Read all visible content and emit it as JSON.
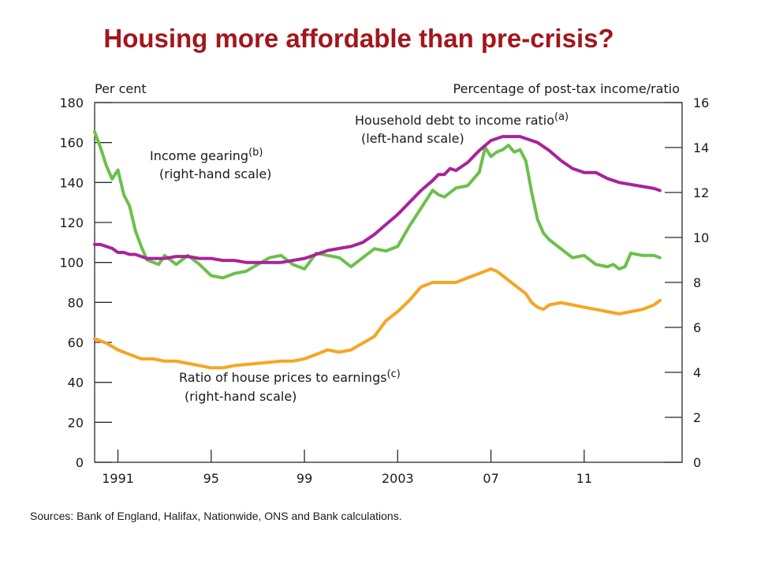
{
  "slide": {
    "title": "Housing more affordable than pre-crisis?",
    "sources": "Sources:  Bank of England, Halifax, Nationwide, ONS and Bank calculations."
  },
  "chart_data": {
    "type": "line",
    "left_axis_unit": "Per cent",
    "right_axis_unit": "Percentage of post-tax income/ratio",
    "left_ylim": [
      0,
      180
    ],
    "right_ylim": [
      0,
      16
    ],
    "left_ticks": [
      0,
      20,
      40,
      60,
      80,
      100,
      120,
      140,
      160,
      180
    ],
    "right_ticks": [
      0,
      2,
      4,
      6,
      8,
      10,
      12,
      14,
      16
    ],
    "x_ticks": [
      {
        "label": "1991",
        "x": 1991
      },
      {
        "label": "95",
        "x": 1995
      },
      {
        "label": "99",
        "x": 1999
      },
      {
        "label": "2003",
        "x": 2003
      },
      {
        "label": "07",
        "x": 2007
      },
      {
        "label": "11",
        "x": 2011
      }
    ],
    "xlim": [
      1990,
      2015.2
    ],
    "colors": {
      "debt": "#a8239a",
      "gearing": "#6cc04a",
      "house": "#f5a623"
    },
    "series": [
      {
        "key": "debt",
        "axis": "left",
        "label": "Household debt to income ratio",
        "label_sup": "(a)",
        "label_sub": "(left-hand scale)",
        "x": [
          1990.0,
          1990.25,
          1990.5,
          1990.75,
          1991.0,
          1991.25,
          1991.5,
          1991.75,
          1992.0,
          1992.25,
          1992.5,
          1992.75,
          1993.0,
          1993.5,
          1994.0,
          1994.5,
          1995.0,
          1995.5,
          1996.0,
          1996.5,
          1997.0,
          1997.5,
          1998.0,
          1998.5,
          1999.0,
          1999.25,
          1999.5,
          1999.75,
          2000.0,
          2000.5,
          2001.0,
          2001.5,
          2002.0,
          2002.5,
          2003.0,
          2003.5,
          2004.0,
          2004.5,
          2004.75,
          2005.0,
          2005.25,
          2005.5,
          2006.0,
          2006.5,
          2007.0,
          2007.5,
          2008.0,
          2008.25,
          2008.5,
          2009.0,
          2009.5,
          2010.0,
          2010.5,
          2011.0,
          2011.5,
          2012.0,
          2012.5,
          2013.0,
          2013.5,
          2014.0,
          2014.25
        ],
        "y": [
          109,
          109,
          108,
          107,
          105,
          105,
          104,
          104,
          103,
          102,
          102,
          102,
          102,
          103,
          103,
          102,
          102,
          101,
          101,
          100,
          100,
          100,
          100,
          101,
          102,
          103,
          104,
          105,
          106,
          107,
          108,
          110,
          114,
          119,
          124,
          130,
          136,
          141,
          144,
          144,
          147,
          146,
          150,
          156,
          161,
          163,
          163,
          163,
          162,
          160,
          156,
          151,
          147,
          145,
          145,
          142,
          140,
          139,
          138,
          137,
          136
        ]
      },
      {
        "key": "gearing",
        "axis": "right",
        "label": "Income gearing",
        "label_sup": "(b)",
        "label_sub": "(right-hand scale)",
        "x": [
          1990.0,
          1990.25,
          1990.5,
          1990.75,
          1991.0,
          1991.25,
          1991.5,
          1991.75,
          1992.0,
          1992.25,
          1992.5,
          1992.75,
          1993.0,
          1993.5,
          1993.75,
          1994.0,
          1994.5,
          1995.0,
          1995.5,
          1996.0,
          1996.5,
          1997.0,
          1997.5,
          1998.0,
          1998.5,
          1999.0,
          1999.5,
          2000.0,
          2000.5,
          2001.0,
          2001.5,
          2002.0,
          2002.5,
          2003.0,
          2003.5,
          2004.0,
          2004.5,
          2004.75,
          2005.0,
          2005.5,
          2006.0,
          2006.5,
          2006.75,
          2007.0,
          2007.25,
          2007.5,
          2007.75,
          2008.0,
          2008.25,
          2008.5,
          2008.75,
          2009.0,
          2009.25,
          2009.5,
          2010.0,
          2010.5,
          2011.0,
          2011.5,
          2012.0,
          2012.25,
          2012.5,
          2012.75,
          2013.0,
          2013.5,
          2014.0,
          2014.25
        ],
        "y": [
          14.7,
          14.0,
          13.2,
          12.6,
          13.0,
          11.9,
          11.4,
          10.3,
          9.6,
          9.0,
          8.9,
          8.8,
          9.2,
          8.8,
          9.0,
          9.2,
          8.8,
          8.3,
          8.2,
          8.4,
          8.5,
          8.8,
          9.1,
          9.2,
          8.8,
          8.6,
          9.3,
          9.2,
          9.1,
          8.7,
          9.1,
          9.5,
          9.4,
          9.6,
          10.5,
          11.3,
          12.1,
          11.9,
          11.8,
          12.2,
          12.3,
          12.9,
          14.0,
          13.6,
          13.8,
          13.9,
          14.1,
          13.8,
          13.9,
          13.4,
          12.0,
          10.8,
          10.2,
          9.9,
          9.5,
          9.1,
          9.2,
          8.8,
          8.7,
          8.8,
          8.6,
          8.7,
          9.3,
          9.2,
          9.2,
          9.1
        ]
      },
      {
        "key": "house",
        "axis": "right",
        "label": "Ratio of house prices to earnings",
        "label_sup": "(c)",
        "label_sub": "(right-hand scale)",
        "x": [
          1990.0,
          1990.5,
          1991.0,
          1991.5,
          1992.0,
          1992.5,
          1993.0,
          1993.5,
          1994.0,
          1994.5,
          1995.0,
          1995.5,
          1996.0,
          1996.5,
          1997.0,
          1997.5,
          1998.0,
          1998.5,
          1999.0,
          1999.5,
          2000.0,
          2000.5,
          2001.0,
          2001.5,
          2002.0,
          2002.5,
          2003.0,
          2003.5,
          2004.0,
          2004.5,
          2005.0,
          2005.5,
          2006.0,
          2006.5,
          2006.75,
          2007.0,
          2007.25,
          2007.5,
          2008.0,
          2008.5,
          2008.75,
          2009.0,
          2009.25,
          2009.5,
          2010.0,
          2010.5,
          2011.0,
          2011.5,
          2012.0,
          2012.5,
          2013.0,
          2013.5,
          2014.0,
          2014.25
        ],
        "y": [
          5.5,
          5.3,
          5.0,
          4.8,
          4.6,
          4.6,
          4.5,
          4.5,
          4.4,
          4.3,
          4.2,
          4.2,
          4.3,
          4.35,
          4.4,
          4.45,
          4.5,
          4.5,
          4.6,
          4.8,
          5.0,
          4.9,
          5.0,
          5.3,
          5.6,
          6.3,
          6.7,
          7.2,
          7.8,
          8.0,
          8.0,
          8.0,
          8.2,
          8.4,
          8.5,
          8.6,
          8.5,
          8.3,
          7.9,
          7.5,
          7.1,
          6.9,
          6.8,
          7.0,
          7.1,
          7.0,
          6.9,
          6.8,
          6.7,
          6.6,
          6.7,
          6.8,
          7.0,
          7.2
        ]
      }
    ]
  }
}
